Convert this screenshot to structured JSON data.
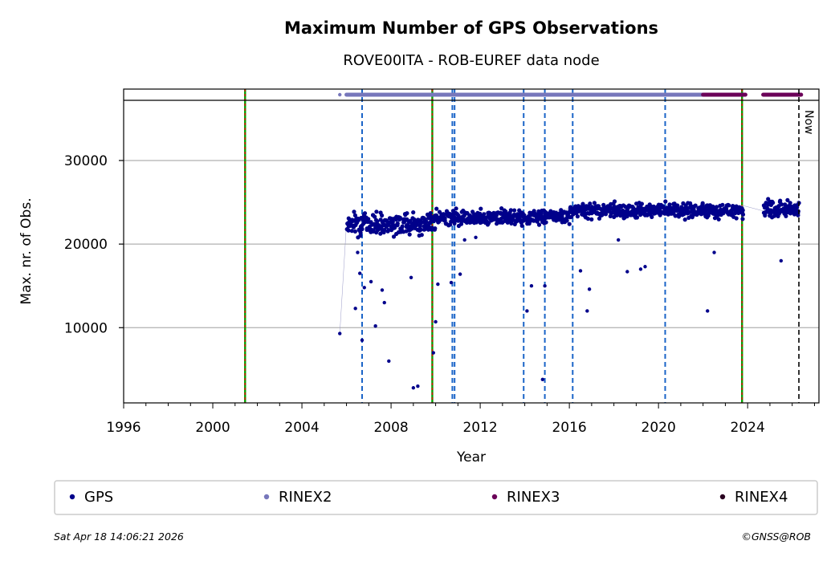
{
  "chart_data": {
    "type": "scatter",
    "title": "Maximum Number of GPS Observations",
    "subtitle": "ROVE00ITA - ROB-EUREF data node",
    "xlabel": "Year",
    "ylabel": "Max. nr. of Obs.",
    "xlim": [
      1996,
      2027.2
    ],
    "ylim": [
      1000,
      37200
    ],
    "xticks": [
      1996,
      2000,
      2004,
      2008,
      2012,
      2016,
      2020,
      2024
    ],
    "xtick_labels": [
      "1996",
      "2000",
      "2004",
      "2008",
      "2012",
      "2016",
      "2020",
      "2024"
    ],
    "yticks": [
      10000,
      20000,
      30000
    ],
    "ytick_labels": [
      "10000",
      "20000",
      "30000"
    ],
    "grid": "horizontal",
    "now_label": "Now",
    "now_year": 2026.3,
    "vlines_green_red": [
      2001.45,
      2009.85,
      2023.75
    ],
    "vlines_blue_dashed": [
      2006.7,
      2010.75,
      2010.85,
      2013.95,
      2014.9,
      2016.15,
      2020.3
    ],
    "series": [
      {
        "name": "GPS",
        "color": "#00008b",
        "segments": [
          [
            2005.7,
            9300
          ],
          [
            2006.0,
            22500
          ],
          [
            2008.0,
            23000
          ],
          [
            2009.9,
            23000
          ],
          [
            2010.3,
            22400
          ],
          [
            2010.9,
            23200
          ],
          [
            2012.0,
            23800
          ],
          [
            2014.0,
            23500
          ],
          [
            2016.0,
            24200
          ],
          [
            2016.5,
            24700
          ],
          [
            2019.0,
            24500
          ],
          [
            2021.0,
            24200
          ],
          [
            2022.5,
            24300
          ],
          [
            2023.8,
            24600
          ],
          [
            2024.8,
            23900
          ],
          [
            2025.5,
            23400
          ],
          [
            2026.3,
            25300
          ]
        ],
        "outliers": [
          [
            2005.7,
            9300
          ],
          [
            2006.4,
            12300
          ],
          [
            2006.5,
            19000
          ],
          [
            2006.6,
            16500
          ],
          [
            2006.7,
            8500
          ],
          [
            2006.8,
            14800
          ],
          [
            2007.1,
            15500
          ],
          [
            2007.3,
            10200
          ],
          [
            2007.6,
            14500
          ],
          [
            2007.7,
            13000
          ],
          [
            2007.9,
            6000
          ],
          [
            2008.9,
            16000
          ],
          [
            2009.0,
            2800
          ],
          [
            2009.2,
            3000
          ],
          [
            2009.9,
            7000
          ],
          [
            2010.0,
            10700
          ],
          [
            2010.1,
            15200
          ],
          [
            2010.7,
            15400
          ],
          [
            2011.1,
            16400
          ],
          [
            2011.3,
            20500
          ],
          [
            2011.8,
            20800
          ],
          [
            2014.1,
            12000
          ],
          [
            2014.3,
            15000
          ],
          [
            2014.8,
            3800
          ],
          [
            2014.9,
            15000
          ],
          [
            2016.5,
            16800
          ],
          [
            2016.8,
            12000
          ],
          [
            2016.9,
            14600
          ],
          [
            2018.2,
            20500
          ],
          [
            2018.6,
            16700
          ],
          [
            2019.2,
            17000
          ],
          [
            2019.4,
            17300
          ],
          [
            2022.2,
            12000
          ],
          [
            2022.5,
            19000
          ],
          [
            2025.5,
            18000
          ]
        ],
        "clusters": [
          [
            2006.0,
            2010.0,
            21000,
            24000
          ],
          [
            2010.0,
            2016.0,
            22200,
            24300
          ],
          [
            2016.0,
            2023.8,
            23000,
            25000
          ],
          [
            2024.7,
            2026.3,
            23000,
            25500
          ]
        ]
      },
      {
        "name": "RINEX2",
        "color": "#7777bb",
        "coverage": [
          [
            2005.7,
            2005.75
          ],
          [
            2006.0,
            2023.7
          ]
        ]
      },
      {
        "name": "RINEX3",
        "color": "#6b0058",
        "coverage": [
          [
            2022.0,
            2023.9
          ],
          [
            2024.7,
            2026.4
          ]
        ]
      },
      {
        "name": "RINEX4",
        "color": "#2a0020",
        "coverage": []
      }
    ]
  },
  "legend": [
    "GPS",
    "RINEX2",
    "RINEX3",
    "RINEX4"
  ],
  "footer": {
    "timestamp": "Sat Apr 18 14:06:21 2026",
    "copyright": "©GNSS@ROB"
  }
}
